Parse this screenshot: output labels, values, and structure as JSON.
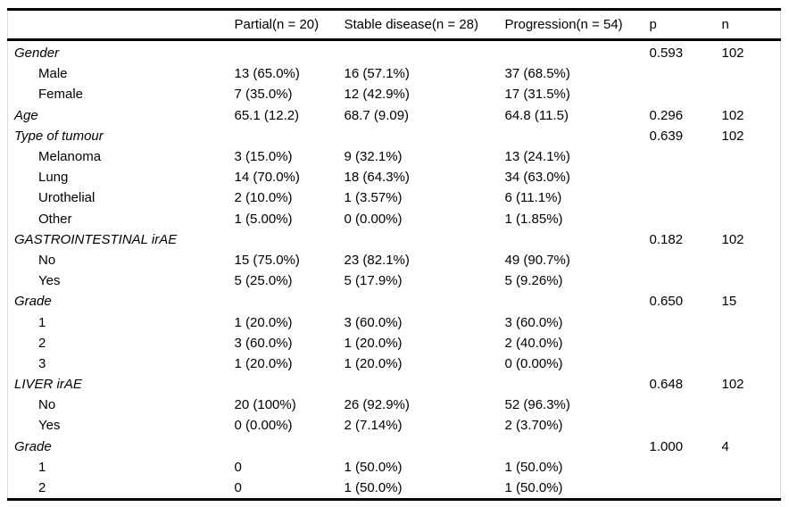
{
  "table": {
    "header": {
      "label": "",
      "partial": "Partial(n = 20)",
      "stable": "Stable disease(n = 28)",
      "progression": "Progression(n = 54)",
      "p": "p",
      "n": "n"
    },
    "rows": [
      {
        "label": "Gender",
        "group": true,
        "partial": "",
        "stable": "",
        "progression": "",
        "p": "0.593",
        "n": "102"
      },
      {
        "label": "Male",
        "group": false,
        "partial": "13 (65.0%)",
        "stable": "16 (57.1%)",
        "progression": "37 (68.5%)",
        "p": "",
        "n": ""
      },
      {
        "label": "Female",
        "group": false,
        "partial": "7 (35.0%)",
        "stable": "12 (42.9%)",
        "progression": "17 (31.5%)",
        "p": "",
        "n": ""
      },
      {
        "label": "Age",
        "group": true,
        "partial": "65.1 (12.2)",
        "stable": "68.7 (9.09)",
        "progression": "64.8 (11.5)",
        "p": "0.296",
        "n": "102"
      },
      {
        "label": "Type of tumour",
        "group": true,
        "partial": "",
        "stable": "",
        "progression": "",
        "p": "0.639",
        "n": "102"
      },
      {
        "label": "Melanoma",
        "group": false,
        "partial": "3 (15.0%)",
        "stable": "9 (32.1%)",
        "progression": "13 (24.1%)",
        "p": "",
        "n": ""
      },
      {
        "label": "Lung",
        "group": false,
        "partial": "14 (70.0%)",
        "stable": "18 (64.3%)",
        "progression": "34 (63.0%)",
        "p": "",
        "n": ""
      },
      {
        "label": "Urothelial",
        "group": false,
        "partial": "2 (10.0%)",
        "stable": "1 (3.57%)",
        "progression": "6 (11.1%)",
        "p": "",
        "n": ""
      },
      {
        "label": "Other",
        "group": false,
        "partial": "1 (5.00%)",
        "stable": "0 (0.00%)",
        "progression": "1 (1.85%)",
        "p": "",
        "n": ""
      },
      {
        "label": "GASTROINTESTINAL irAE",
        "group": true,
        "partial": "",
        "stable": "",
        "progression": "",
        "p": "0.182",
        "n": "102"
      },
      {
        "label": "No",
        "group": false,
        "partial": "15 (75.0%)",
        "stable": "23 (82.1%)",
        "progression": "49 (90.7%)",
        "p": "",
        "n": ""
      },
      {
        "label": "Yes",
        "group": false,
        "partial": "5 (25.0%)",
        "stable": "5 (17.9%)",
        "progression": "5 (9.26%)",
        "p": "",
        "n": ""
      },
      {
        "label": "Grade",
        "group": true,
        "partial": "",
        "stable": "",
        "progression": "",
        "p": "0.650",
        "n": "15"
      },
      {
        "label": "1",
        "group": false,
        "partial": "1 (20.0%)",
        "stable": "3 (60.0%)",
        "progression": "3 (60.0%)",
        "p": "",
        "n": ""
      },
      {
        "label": "2",
        "group": false,
        "partial": "3 (60.0%)",
        "stable": "1 (20.0%)",
        "progression": "2 (40.0%)",
        "p": "",
        "n": ""
      },
      {
        "label": "3",
        "group": false,
        "partial": "1 (20.0%)",
        "stable": "1 (20.0%)",
        "progression": "0 (0.00%)",
        "p": "",
        "n": ""
      },
      {
        "label": "LIVER irAE",
        "group": true,
        "partial": "",
        "stable": "",
        "progression": "",
        "p": "0.648",
        "n": "102"
      },
      {
        "label": "No",
        "group": false,
        "partial": "20 (100%)",
        "stable": "26 (92.9%)",
        "progression": "52 (96.3%)",
        "p": "",
        "n": ""
      },
      {
        "label": "Yes",
        "group": false,
        "partial": "0 (0.00%)",
        "stable": "2 (7.14%)",
        "progression": "2 (3.70%)",
        "p": "",
        "n": ""
      },
      {
        "label": "Grade",
        "group": true,
        "partial": "",
        "stable": "",
        "progression": "",
        "p": "1.000",
        "n": "4"
      },
      {
        "label": "1",
        "group": false,
        "partial": "0",
        "stable": "1 (50.0%)",
        "progression": "1 (50.0%)",
        "p": "",
        "n": ""
      },
      {
        "label": "2",
        "group": false,
        "partial": "0",
        "stable": "1 (50.0%)",
        "progression": "1 (50.0%)",
        "p": "",
        "n": ""
      }
    ]
  },
  "colors": {
    "text": "#000000",
    "background": "#ffffff",
    "rule": "#000000",
    "side_border": "#d8d8d8"
  }
}
